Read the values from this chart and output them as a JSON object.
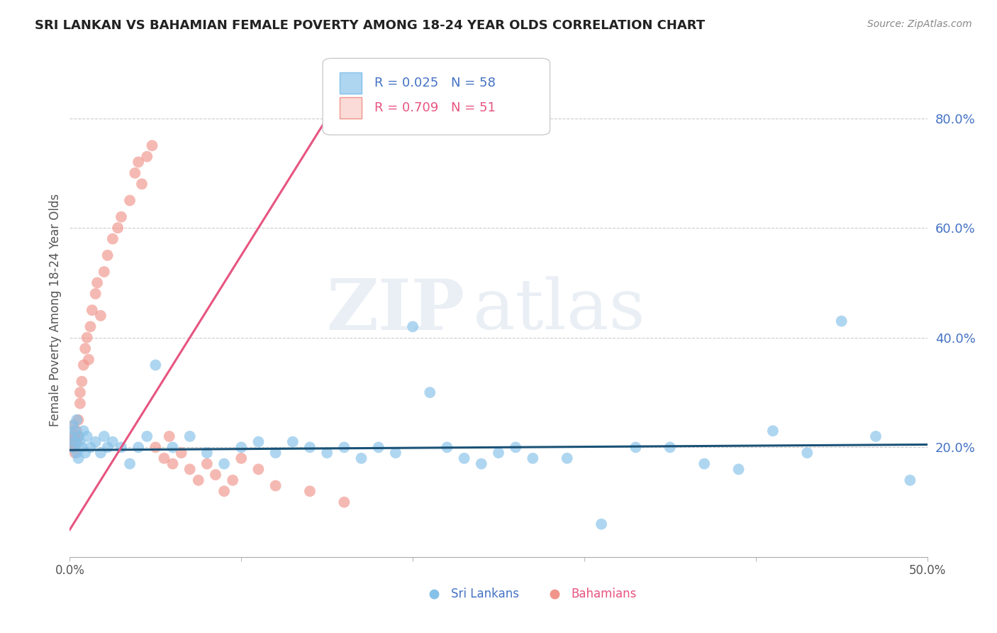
{
  "title": "SRI LANKAN VS BAHAMIAN FEMALE POVERTY AMONG 18-24 YEAR OLDS CORRELATION CHART",
  "source": "Source: ZipAtlas.com",
  "ylabel": "Female Poverty Among 18-24 Year Olds",
  "xlim": [
    0.0,
    0.5
  ],
  "ylim": [
    0.0,
    0.9
  ],
  "yticks": [
    0.2,
    0.4,
    0.6,
    0.8
  ],
  "ytick_labels": [
    "20.0%",
    "40.0%",
    "60.0%",
    "80.0%"
  ],
  "xticks": [
    0.0,
    0.1,
    0.2,
    0.3,
    0.4,
    0.5
  ],
  "xtick_labels": [
    "0.0%",
    "",
    "",
    "",
    "",
    "50.0%"
  ],
  "sri_lankans_color": "#85c1e9",
  "bahamians_color": "#f1948a",
  "sri_lankans_line_color": "#1a5276",
  "bahamians_line_color": "#e75480",
  "legend_r1": "R = 0.025",
  "legend_n1": "N = 58",
  "legend_r2": "R = 0.709",
  "legend_n2": "N = 51",
  "label1": "Sri Lankans",
  "label2": "Bahamians",
  "watermark": "ZIPatlas",
  "background_color": "#ffffff",
  "sri_lankans_x": [
    0.001,
    0.002,
    0.002,
    0.003,
    0.003,
    0.004,
    0.004,
    0.005,
    0.005,
    0.006,
    0.007,
    0.008,
    0.009,
    0.01,
    0.012,
    0.015,
    0.018,
    0.02,
    0.022,
    0.025,
    0.03,
    0.035,
    0.04,
    0.045,
    0.05,
    0.06,
    0.07,
    0.08,
    0.09,
    0.1,
    0.11,
    0.12,
    0.13,
    0.14,
    0.15,
    0.16,
    0.17,
    0.18,
    0.19,
    0.2,
    0.21,
    0.22,
    0.23,
    0.24,
    0.25,
    0.26,
    0.27,
    0.29,
    0.31,
    0.33,
    0.35,
    0.37,
    0.39,
    0.41,
    0.43,
    0.45,
    0.47,
    0.49
  ],
  "sri_lankans_y": [
    0.22,
    0.2,
    0.24,
    0.21,
    0.23,
    0.19,
    0.25,
    0.18,
    0.22,
    0.21,
    0.2,
    0.23,
    0.19,
    0.22,
    0.2,
    0.21,
    0.19,
    0.22,
    0.2,
    0.21,
    0.2,
    0.17,
    0.2,
    0.22,
    0.35,
    0.2,
    0.22,
    0.19,
    0.17,
    0.2,
    0.21,
    0.19,
    0.21,
    0.2,
    0.19,
    0.2,
    0.18,
    0.2,
    0.19,
    0.42,
    0.3,
    0.2,
    0.18,
    0.17,
    0.19,
    0.2,
    0.18,
    0.18,
    0.06,
    0.2,
    0.2,
    0.17,
    0.16,
    0.23,
    0.19,
    0.43,
    0.22,
    0.14
  ],
  "bahamians_x": [
    0.001,
    0.001,
    0.002,
    0.002,
    0.002,
    0.003,
    0.003,
    0.003,
    0.004,
    0.004,
    0.005,
    0.005,
    0.006,
    0.006,
    0.007,
    0.008,
    0.009,
    0.01,
    0.011,
    0.012,
    0.013,
    0.015,
    0.016,
    0.018,
    0.02,
    0.022,
    0.025,
    0.028,
    0.03,
    0.035,
    0.038,
    0.04,
    0.042,
    0.045,
    0.048,
    0.05,
    0.055,
    0.058,
    0.06,
    0.065,
    0.07,
    0.075,
    0.08,
    0.085,
    0.09,
    0.095,
    0.1,
    0.11,
    0.12,
    0.14,
    0.16
  ],
  "bahamians_y": [
    0.2,
    0.22,
    0.2,
    0.24,
    0.21,
    0.2,
    0.22,
    0.19,
    0.23,
    0.21,
    0.25,
    0.22,
    0.28,
    0.3,
    0.32,
    0.35,
    0.38,
    0.4,
    0.36,
    0.42,
    0.45,
    0.48,
    0.5,
    0.44,
    0.52,
    0.55,
    0.58,
    0.6,
    0.62,
    0.65,
    0.7,
    0.72,
    0.68,
    0.73,
    0.75,
    0.2,
    0.18,
    0.22,
    0.17,
    0.19,
    0.16,
    0.14,
    0.17,
    0.15,
    0.12,
    0.14,
    0.18,
    0.16,
    0.13,
    0.12,
    0.1
  ],
  "bh_line_x": [
    0.0,
    0.17
  ],
  "bh_line_y": [
    0.05,
    0.9
  ],
  "sl_line_x": [
    0.0,
    0.5
  ],
  "sl_line_y": [
    0.195,
    0.205
  ]
}
